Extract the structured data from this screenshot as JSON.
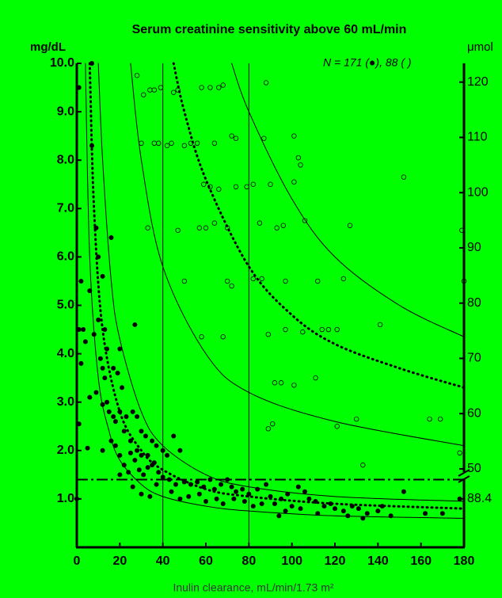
{
  "chart_data": {
    "type": "scatter",
    "title": "Serum creatinine sensitivity above 60 mL/min",
    "y_label": "mg/dL",
    "y2_label": "μmol",
    "x_label": "Inulin clearance, mL/min/1.73 m²",
    "annotation": "N = 171 (●), 88 ( )",
    "xlim": [
      0,
      180
    ],
    "xticks": [
      0,
      20,
      40,
      60,
      80,
      100,
      120,
      140,
      160,
      180
    ],
    "ylim": [
      0,
      10
    ],
    "yticks": [
      {
        "value": 1,
        "label": "1.0"
      },
      {
        "value": 2,
        "label": "2.0"
      },
      {
        "value": 3,
        "label": "3.0"
      },
      {
        "value": 4,
        "label": "4.0"
      },
      {
        "value": 5,
        "label": "5.0"
      },
      {
        "value": 6,
        "label": "6.0"
      },
      {
        "value": 7,
        "label": "7.0"
      },
      {
        "value": 8,
        "label": "8.0"
      },
      {
        "value": 9,
        "label": "9.0"
      },
      {
        "value": 10,
        "label": "10.0"
      }
    ],
    "y2lim": [
      35.8,
      123.4
    ],
    "y2ticks": [
      50,
      60,
      70,
      80,
      90,
      100,
      110,
      120
    ],
    "y2_break_tick": {
      "value": 88.4,
      "mgdl": 1
    },
    "vlines": [
      40,
      80
    ],
    "hline": 1.4,
    "curves": [
      {
        "style": "solid",
        "x": [
          4,
          6,
          10,
          15,
          20,
          30,
          40,
          60,
          80,
          120,
          180
        ],
        "values": [
          10,
          6,
          3.5,
          2.4,
          1.8,
          1.3,
          1.05,
          0.85,
          0.75,
          0.65,
          0.6
        ]
      },
      {
        "style": "dotted",
        "x": [
          6,
          8,
          12,
          20,
          30,
          40,
          60,
          80,
          120,
          180
        ],
        "values": [
          10,
          7,
          4.5,
          2.8,
          2.0,
          1.6,
          1.2,
          1.05,
          0.9,
          0.8
        ]
      },
      {
        "style": "solid",
        "x": [
          10,
          12,
          16,
          20,
          30,
          40,
          60,
          80,
          120,
          180
        ],
        "values": [
          10,
          8,
          5.5,
          4.3,
          2.8,
          2.1,
          1.5,
          1.25,
          1.05,
          0.95
        ]
      },
      {
        "style": "solid",
        "x": [
          25,
          30,
          40,
          60,
          80,
          120,
          180
        ],
        "values": [
          10,
          8,
          5.8,
          4.0,
          3.2,
          2.6,
          2.1
        ]
      },
      {
        "style": "dotted",
        "x": [
          45,
          50,
          60,
          80,
          100,
          120,
          150,
          180
        ],
        "values": [
          10,
          9,
          7.6,
          5.8,
          4.8,
          4.2,
          3.7,
          3.3
        ]
      },
      {
        "style": "solid",
        "x": [
          72,
          80,
          100,
          120,
          150,
          180
        ],
        "values": [
          10,
          9,
          7.2,
          6.0,
          5.0,
          4.35
        ]
      }
    ],
    "series": [
      {
        "marker": "filled",
        "color": "#000000",
        "x": [
          1,
          7,
          7,
          9,
          10,
          12,
          16,
          2,
          3,
          4,
          6,
          8,
          10,
          13,
          14,
          27,
          11,
          12,
          13,
          17,
          19,
          20,
          21,
          9,
          6,
          14,
          15,
          18,
          20,
          23,
          26,
          28,
          1,
          12,
          17,
          22,
          25,
          30,
          32,
          35,
          37,
          40,
          42,
          45,
          48,
          12,
          18,
          20,
          22,
          24,
          27,
          29,
          31,
          33,
          35,
          38,
          40,
          43,
          46,
          50,
          53,
          56,
          59,
          62,
          64,
          67,
          70,
          72,
          74,
          77,
          80,
          84,
          88,
          90,
          92,
          95,
          98,
          100,
          103,
          106,
          108,
          111,
          115,
          118,
          120,
          124,
          128,
          131,
          135,
          140,
          146,
          152,
          162,
          170,
          178,
          26,
          30,
          34,
          37,
          44,
          48,
          52,
          57,
          60,
          65,
          68,
          73,
          78,
          82,
          86,
          94,
          97,
          104,
          112,
          126,
          133,
          142,
          30,
          33,
          36,
          28,
          25,
          20,
          16,
          5,
          0,
          1,
          2
        ],
        "values": [
          9.5,
          10,
          8.3,
          6.6,
          6.0,
          5.6,
          6.4,
          5.5,
          4.5,
          4.25,
          5.3,
          4.4,
          4.7,
          4.5,
          4.1,
          4.6,
          3.9,
          3.7,
          3.5,
          3.7,
          3.6,
          4.1,
          3.3,
          3.2,
          3.1,
          3.0,
          2.8,
          2.6,
          2.8,
          2.7,
          2.8,
          2.7,
          2.55,
          2.95,
          2.7,
          2.4,
          2.2,
          2.4,
          2.3,
          2.2,
          2.1,
          2.0,
          1.9,
          2.3,
          2.0,
          2.0,
          2.1,
          1.9,
          1.7,
          1.55,
          1.8,
          1.6,
          1.5,
          1.65,
          1.7,
          1.55,
          1.45,
          1.4,
          1.3,
          1.35,
          1.3,
          1.35,
          1.25,
          1.4,
          1.2,
          1.3,
          1.4,
          1.25,
          1.15,
          1.2,
          1.1,
          1.2,
          1.3,
          1.05,
          0.9,
          1.0,
          1.1,
          0.85,
          1.25,
          1.15,
          1.0,
          0.95,
          0.85,
          0.9,
          0.8,
          0.75,
          0.85,
          0.8,
          0.7,
          0.75,
          0.65,
          1.15,
          0.7,
          0.7,
          1.0,
          1.25,
          1.1,
          1.05,
          1.3,
          1.15,
          1.0,
          1.05,
          1.1,
          0.95,
          1.0,
          0.9,
          1.0,
          0.95,
          0.85,
          0.9,
          0.65,
          0.75,
          0.8,
          0.7,
          0.65,
          0.6,
          0.85,
          1.9,
          1.9,
          1.75,
          2.0,
          1.95,
          1.5,
          2.2,
          2.05,
          1.0,
          4.5,
          3.8
        ]
      },
      {
        "marker": "open",
        "color": "#000000",
        "x": [
          28,
          31,
          34,
          36,
          39,
          45,
          47,
          58,
          62,
          66,
          68,
          88,
          30,
          36,
          38,
          42,
          44,
          50,
          53,
          56,
          64,
          72,
          74,
          87,
          101,
          103,
          104,
          152,
          59,
          62,
          66,
          74,
          79,
          82,
          90,
          101,
          33,
          47,
          57,
          60,
          64,
          70,
          85,
          93,
          96,
          106,
          127,
          179,
          50,
          70,
          72,
          82,
          86,
          97,
          112,
          124,
          180,
          58,
          68,
          89,
          97,
          105,
          114,
          117,
          121,
          141,
          92,
          95,
          101,
          111,
          89,
          91,
          121,
          130,
          164,
          169,
          133,
          178
        ],
        "values": [
          9.75,
          9.35,
          9.45,
          9.45,
          9.5,
          9.4,
          9.45,
          9.5,
          9.5,
          9.5,
          9.55,
          9.6,
          8.35,
          8.35,
          8.35,
          8.3,
          8.35,
          8.3,
          8.35,
          8.35,
          8.35,
          8.5,
          8.45,
          8.45,
          8.5,
          8.05,
          7.9,
          7.65,
          7.5,
          7.45,
          7.4,
          7.45,
          7.45,
          7.5,
          7.5,
          7.55,
          6.6,
          6.55,
          6.6,
          6.6,
          6.7,
          6.6,
          6.7,
          6.6,
          6.65,
          6.75,
          6.65,
          6.55,
          5.5,
          5.5,
          5.4,
          5.55,
          5.55,
          5.5,
          5.5,
          5.55,
          5.5,
          4.35,
          4.35,
          4.4,
          4.5,
          4.45,
          4.5,
          4.5,
          4.5,
          4.6,
          3.4,
          3.4,
          3.35,
          3.5,
          2.45,
          2.55,
          2.5,
          2.65,
          2.65,
          2.65,
          1.7,
          1.95
        ]
      }
    ]
  }
}
